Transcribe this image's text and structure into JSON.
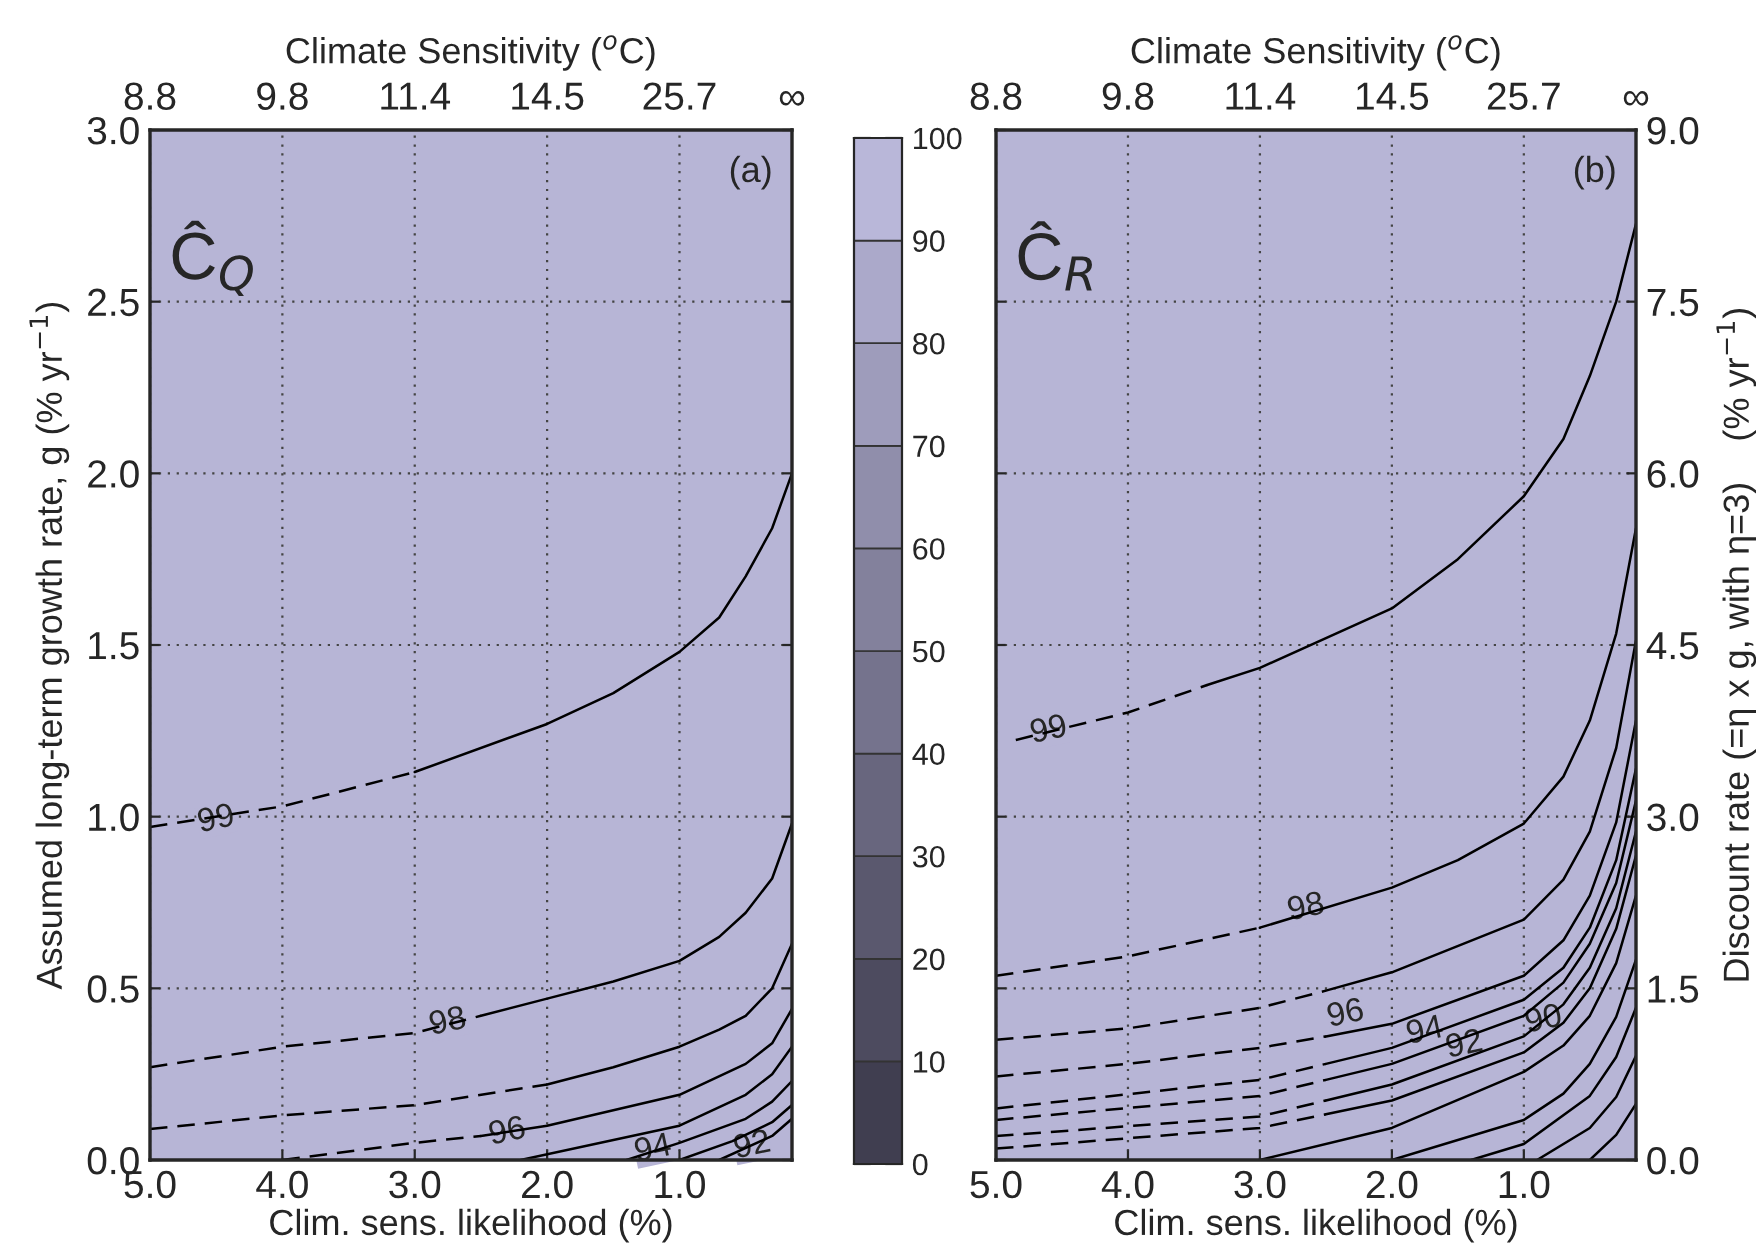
{
  "chart_data": [
    {
      "type": "line",
      "xlabel": "Clim. sens. likelihood (%)",
      "x2label": "Climate Sensitivity ($^{o}$C)",
      "ylabel": "Assumed long-term growth rate, g (% yr$^{−1}$)",
      "xlim": [
        5.0,
        0.15
      ],
      "xticks": [
        {
          "value": 5,
          "label": "5.0"
        },
        {
          "value": 4,
          "label": "4.0"
        },
        {
          "value": 3,
          "label": "3.0"
        },
        {
          "value": 2,
          "label": "2.0"
        },
        {
          "value": 1,
          "label": "1.0"
        }
      ],
      "ylim": [
        0,
        3.0
      ],
      "yticks": [
        {
          "value": 0,
          "label": "0.0"
        },
        0.5,
        {
          "value": 1,
          "label": "1.0"
        },
        1.5,
        {
          "value": 2,
          "label": "2.0"
        },
        2.5,
        {
          "value": 3,
          "label": "3.0"
        }
      ],
      "grid": true,
      "series": [
        {
          "color": "#000000",
          "line_style": "dashed",
          "x": [
            5,
            4,
            3
          ],
          "values": [
            0.97,
            1.03,
            1.13
          ]
        },
        {
          "color": "#000000",
          "line_style": "solid",
          "x": [
            3,
            2,
            1.5,
            1,
            0.7,
            0.5,
            0.3,
            0.15
          ],
          "values": [
            1.13,
            1.27,
            1.36,
            1.48,
            1.58,
            1.7,
            1.84,
            2.0
          ]
        },
        {
          "color": "#000000",
          "line_style": "dashed",
          "x": [
            5,
            4,
            3,
            2.5
          ],
          "values": [
            0.27,
            0.33,
            0.37,
            0.42
          ]
        },
        {
          "color": "#000000",
          "line_style": "solid",
          "x": [
            2.5,
            2,
            1.5,
            1,
            0.7,
            0.5,
            0.3,
            0.15
          ],
          "values": [
            0.42,
            0.47,
            0.52,
            0.58,
            0.65,
            0.72,
            0.82,
            0.98
          ]
        },
        {
          "color": "#000000",
          "line_style": "dashed",
          "x": [
            5,
            4,
            3,
            2
          ],
          "values": [
            0.09,
            0.13,
            0.16,
            0.22
          ]
        },
        {
          "color": "#000000",
          "line_style": "solid",
          "x": [
            2,
            1.5,
            1,
            0.7,
            0.5,
            0.3,
            0.15
          ],
          "values": [
            0.22,
            0.27,
            0.33,
            0.38,
            0.42,
            0.5,
            0.63
          ]
        },
        {
          "color": "#000000",
          "line_style": "dashed",
          "x": [
            4,
            3,
            2.5
          ],
          "values": [
            0,
            0.05,
            0.07
          ]
        },
        {
          "color": "#000000",
          "line_style": "solid",
          "x": [
            2.5,
            2,
            1,
            0.5,
            0.3,
            0.15
          ],
          "values": [
            0.07,
            0.1,
            0.19,
            0.28,
            0.34,
            0.44
          ]
        },
        {
          "color": "#000000",
          "line_style": "solid",
          "x": [
            2.2,
            1,
            0.5,
            0.3,
            0.15
          ],
          "values": [
            0,
            0.1,
            0.19,
            0.25,
            0.33
          ]
        },
        {
          "color": "#000000",
          "line_style": "solid",
          "x": [
            1.4,
            1,
            0.5,
            0.3,
            0.15
          ],
          "values": [
            0,
            0.05,
            0.12,
            0.17,
            0.23
          ]
        },
        {
          "color": "#000000",
          "line_style": "solid",
          "x": [
            1,
            0.6,
            0.3,
            0.15
          ],
          "values": [
            0,
            0.055,
            0.11,
            0.16
          ]
        },
        {
          "color": "#000000",
          "line_style": "solid",
          "x": [
            0.7,
            0.3,
            0.15
          ],
          "values": [
            0,
            0.07,
            0.12
          ]
        }
      ],
      "annotations": [
        "(a)",
        "Ĉ$_{Q}$",
        "8.8",
        "9.8",
        "11.4",
        "14.5",
        "25.7",
        "∞",
        {
          "text": "99",
          "x": 4.5,
          "y": 0.99
        },
        {
          "text": "98",
          "x": 2.75,
          "y": 0.4
        },
        {
          "text": "96",
          "x": 2.3,
          "y": 0.08
        },
        {
          "text": "94",
          "x": 1.2,
          "y": 0.03
        },
        {
          "text": "92",
          "x": 0.45,
          "y": 0.04
        }
      ]
    },
    {
      "type": "bar",
      "stacked": true,
      "categories": [
        null
      ],
      "ylim": [
        0,
        100
      ],
      "yticks": [
        0,
        10,
        20,
        30,
        40,
        50,
        60,
        70,
        80,
        90,
        100
      ],
      "series": [
        {
          "color": "#403e50",
          "values": [
            10
          ]
        },
        {
          "color": "#4d4b5f",
          "values": [
            10
          ]
        },
        {
          "color": "#5a586e",
          "values": [
            10
          ]
        },
        {
          "color": "#68667e",
          "values": [
            10
          ]
        },
        {
          "color": "#75738d",
          "values": [
            10
          ]
        },
        {
          "color": "#83819c",
          "values": [
            10
          ]
        },
        {
          "color": "#908eab",
          "values": [
            10
          ]
        },
        {
          "color": "#9e9cbb",
          "values": [
            10
          ]
        },
        {
          "color": "#aba9ca",
          "values": [
            10
          ]
        },
        {
          "color": "#b9b7d9",
          "values": [
            10
          ]
        }
      ]
    },
    {
      "type": "line",
      "xlabel": "Clim. sens. likelihood (%)",
      "x2label": "Climate Sensitivity ($^{o}$C)",
      "ylabel": "Discount rate (=η x g, with η=3)    (% yr$^{−1}$)",
      "xlim": [
        5.0,
        0.15
      ],
      "xticks": [
        {
          "value": 5,
          "label": "5.0"
        },
        {
          "value": 4,
          "label": "4.0"
        },
        {
          "value": 3,
          "label": "3.0"
        },
        {
          "value": 2,
          "label": "2.0"
        },
        {
          "value": 1,
          "label": "1.0"
        }
      ],
      "ylim": [
        0,
        9.0
      ],
      "yticks": [
        {
          "value": 0,
          "label": "0.0"
        },
        1.5,
        {
          "value": 3,
          "label": "3.0"
        },
        4.5,
        {
          "value": 6,
          "label": "6.0"
        },
        7.5,
        {
          "value": 9,
          "label": "9.0"
        }
      ],
      "grid": true,
      "series": [
        {
          "color": "#000000",
          "line_style": "dashed",
          "x": [
            4.85,
            4,
            3.4
          ],
          "values": [
            3.67,
            3.91,
            4.15
          ]
        },
        {
          "color": "#000000",
          "line_style": "solid",
          "x": [
            3.4,
            3,
            2,
            1.5,
            1,
            0.7,
            0.5,
            0.3,
            0.15
          ],
          "values": [
            4.15,
            4.3,
            4.82,
            5.25,
            5.8,
            6.3,
            6.85,
            7.5,
            8.18
          ]
        },
        {
          "color": "#000000",
          "line_style": "dashed",
          "x": [
            5,
            4,
            3
          ],
          "values": [
            1.61,
            1.78,
            2.03
          ]
        },
        {
          "color": "#000000",
          "line_style": "solid",
          "x": [
            3,
            2,
            1.5,
            1,
            0.7,
            0.5,
            0.3,
            0.15
          ],
          "values": [
            2.03,
            2.38,
            2.62,
            2.94,
            3.35,
            3.84,
            4.6,
            5.52
          ]
        },
        {
          "color": "#000000",
          "line_style": "dashed",
          "x": [
            5,
            4,
            3,
            2.5
          ],
          "values": [
            1.05,
            1.15,
            1.33,
            1.48
          ]
        },
        {
          "color": "#000000",
          "line_style": "solid",
          "x": [
            2.5,
            2,
            1,
            0.7,
            0.5,
            0.3,
            0.15
          ],
          "values": [
            1.48,
            1.64,
            2.1,
            2.45,
            2.87,
            3.6,
            4.54
          ]
        },
        {
          "color": "#000000",
          "line_style": "dashed",
          "x": [
            5,
            4,
            3,
            2.5
          ],
          "values": [
            0.73,
            0.84,
            0.98,
            1.08
          ]
        },
        {
          "color": "#000000",
          "line_style": "solid",
          "x": [
            2.5,
            2,
            1,
            0.7,
            0.5,
            0.3,
            0.15
          ],
          "values": [
            1.08,
            1.19,
            1.61,
            1.92,
            2.31,
            2.95,
            3.84
          ]
        },
        {
          "color": "#000000",
          "line_style": "dashed",
          "x": [
            5,
            3,
            2.5
          ],
          "values": [
            0.45,
            0.7,
            0.84
          ]
        },
        {
          "color": "#000000",
          "line_style": "solid",
          "x": [
            2.5,
            2,
            1,
            0.7,
            0.5,
            0.3,
            0.15
          ],
          "values": [
            0.84,
            0.98,
            1.4,
            1.68,
            2.03,
            2.62,
            3.42
          ]
        },
        {
          "color": "#000000",
          "line_style": "dashed",
          "x": [
            5,
            3,
            2.5
          ],
          "values": [
            0.35,
            0.56,
            0.7
          ]
        },
        {
          "color": "#000000",
          "line_style": "solid",
          "x": [
            2.5,
            2,
            1,
            0.7,
            0.5,
            0.3,
            0.15
          ],
          "values": [
            0.7,
            0.84,
            1.26,
            1.55,
            1.89,
            2.42,
            3.14
          ]
        },
        {
          "color": "#000000",
          "line_style": "dashed",
          "x": [
            5,
            3,
            2.5
          ],
          "values": [
            0.21,
            0.38,
            0.52
          ]
        },
        {
          "color": "#000000",
          "line_style": "solid",
          "x": [
            2.5,
            2,
            1,
            0.7,
            0.5,
            0.3,
            0.15
          ],
          "values": [
            0.52,
            0.66,
            1.08,
            1.36,
            1.68,
            2.2,
            2.87
          ]
        },
        {
          "color": "#000000",
          "line_style": "dashed",
          "x": [
            5,
            3,
            2.5
          ],
          "values": [
            0.1,
            0.28,
            0.4
          ]
        },
        {
          "color": "#000000",
          "line_style": "solid",
          "x": [
            2.5,
            2,
            1,
            0.7,
            0.5,
            0.3,
            0.15
          ],
          "values": [
            0.4,
            0.52,
            0.94,
            1.2,
            1.5,
            2.02,
            2.66
          ]
        },
        {
          "color": "#000000",
          "line_style": "solid",
          "x": [
            3,
            2,
            1,
            0.7,
            0.5,
            0.3,
            0.15
          ],
          "values": [
            0,
            0.28,
            0.77,
            1.0,
            1.26,
            1.72,
            2.31
          ]
        },
        {
          "color": "#000000",
          "line_style": "solid",
          "x": [
            2,
            1,
            0.7,
            0.5,
            0.3,
            0.15
          ],
          "values": [
            0,
            0.35,
            0.58,
            0.84,
            1.25,
            1.75
          ]
        },
        {
          "color": "#000000",
          "line_style": "solid",
          "x": [
            1.4,
            1,
            0.5,
            0.3,
            0.15
          ],
          "values": [
            0,
            0.14,
            0.56,
            0.9,
            1.33
          ]
        },
        {
          "color": "#000000",
          "line_style": "solid",
          "x": [
            0.9,
            0.5,
            0.3,
            0.15
          ],
          "values": [
            0,
            0.28,
            0.55,
            0.91
          ]
        },
        {
          "color": "#000000",
          "line_style": "solid",
          "x": [
            0.5,
            0.3,
            0.15
          ],
          "values": [
            0,
            0.22,
            0.49
          ]
        }
      ],
      "annotations": [
        "(b)",
        "Ĉ$_{R}$",
        "8.8",
        "9.8",
        "11.4",
        "14.5",
        "25.7",
        "∞",
        {
          "text": "99",
          "x": 4.6,
          "y": 3.75
        },
        {
          "text": "98",
          "x": 2.65,
          "y": 2.2
        },
        {
          "text": "96",
          "x": 2.35,
          "y": 1.27
        },
        {
          "text": "94",
          "x": 1.75,
          "y": 1.12
        },
        {
          "text": "92",
          "x": 1.45,
          "y": 1.0
        },
        {
          "text": "90",
          "x": 0.85,
          "y": 1.22
        }
      ]
    }
  ]
}
